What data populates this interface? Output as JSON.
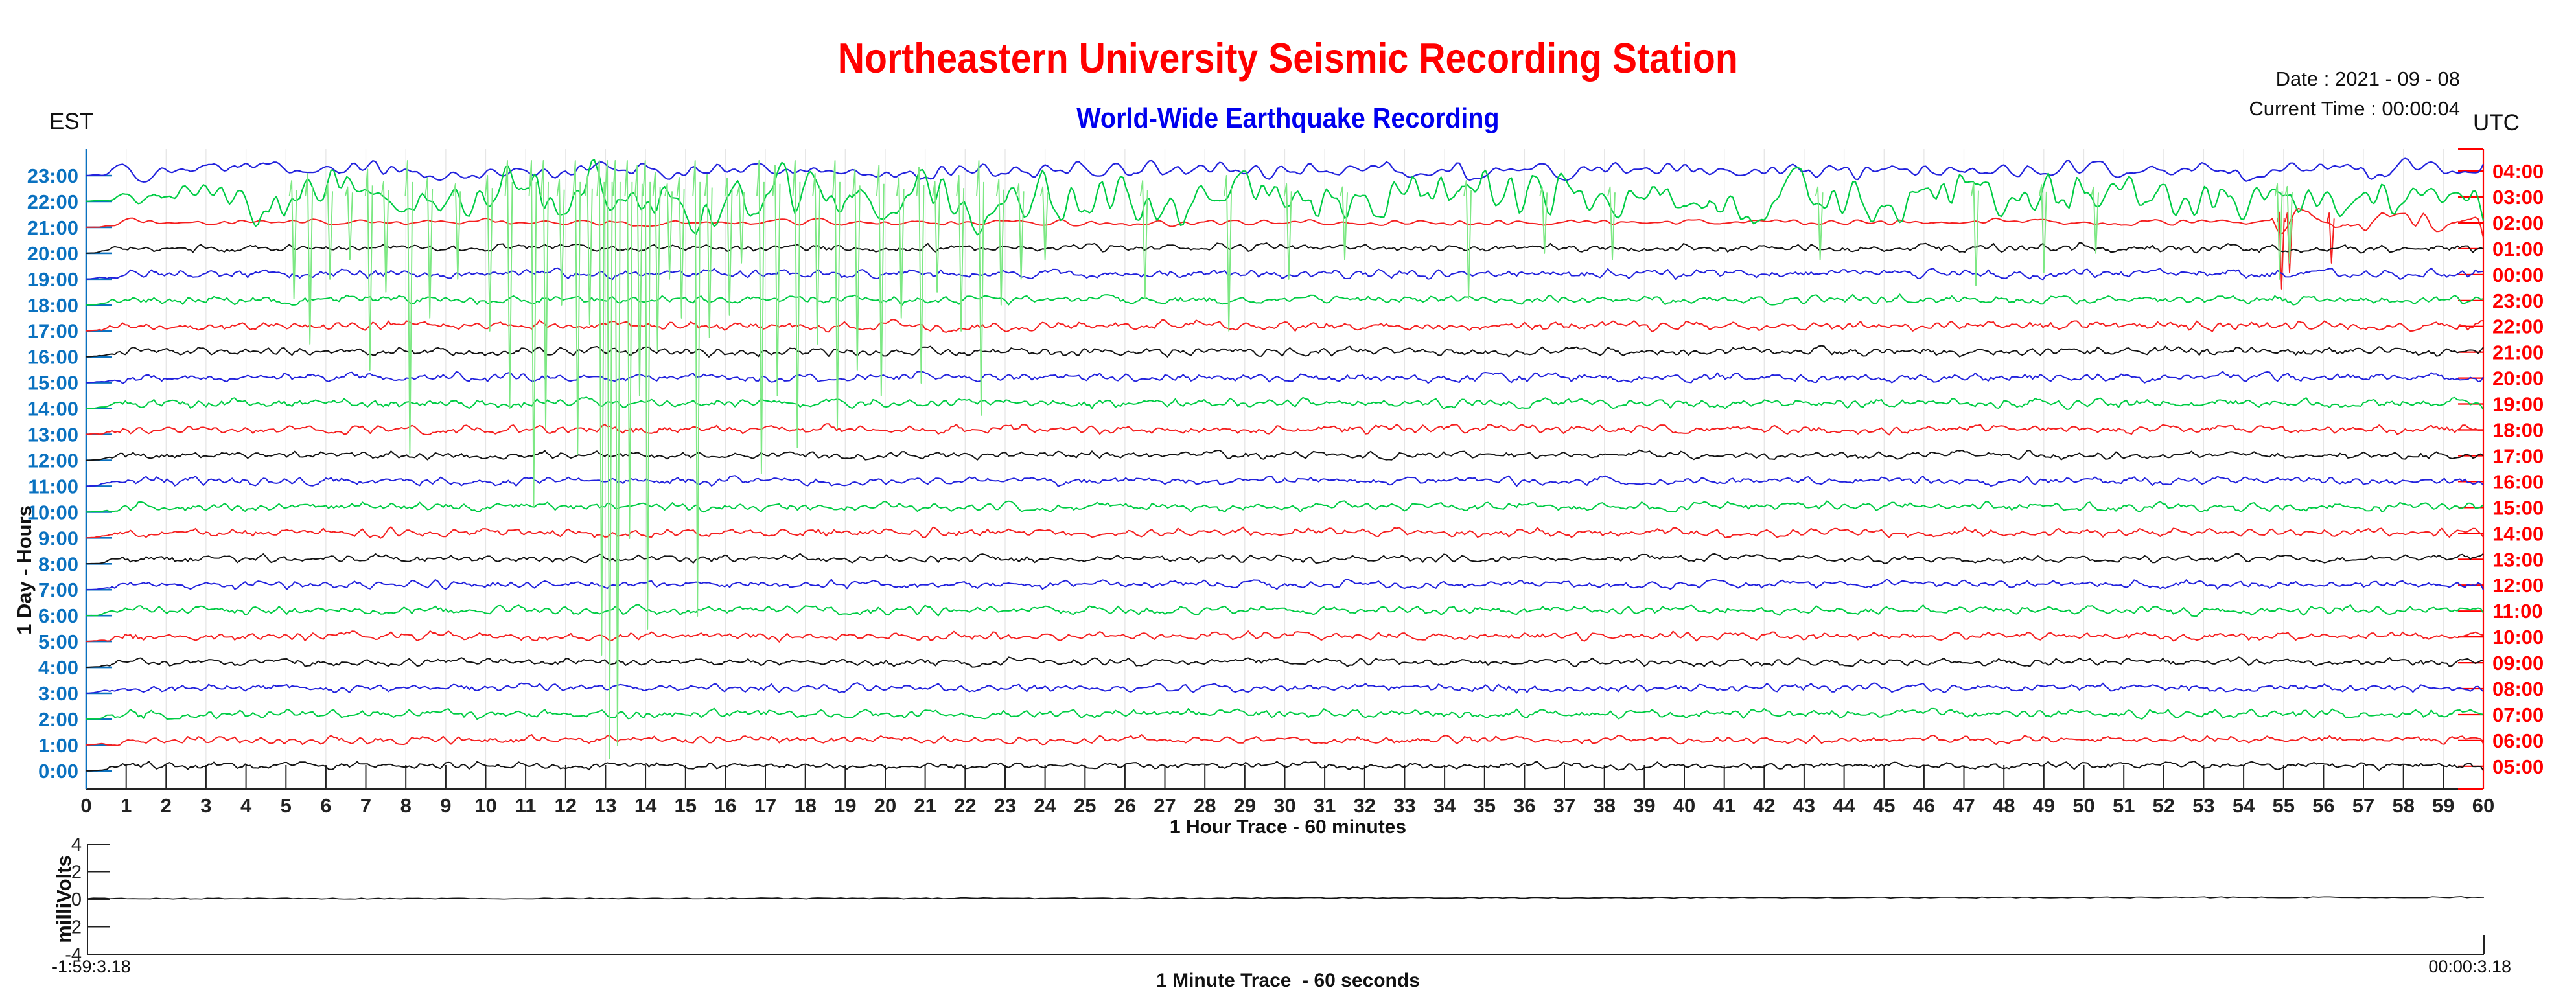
{
  "header": {
    "title": "Northeastern University Seismic Recording Station",
    "subtitle": "World-Wide Earthquake Recording",
    "date_label": "Date : 2021 - 09 - 08",
    "current_time_label": "Current Time : 00:00:04",
    "left_timezone": "EST",
    "right_timezone": "UTC"
  },
  "colors": {
    "title": "#ff0000",
    "subtitle": "#0000ee",
    "est_axis": "#0b72c0",
    "utc_axis": "#ff0000",
    "grid": "#e6e6e6",
    "axis_black": "#222222",
    "trace_black": "#141414",
    "trace_red": "#f52020",
    "trace_green": "#00cc44",
    "trace_green_event": "#7de884",
    "trace_blue": "#2222dd"
  },
  "chart_data": {
    "type": "line",
    "subtype": "helicorder",
    "title": "Northeastern University Seismic Recording Station",
    "subtitle": "World-Wide Earthquake Recording",
    "x_axis": {
      "label": "1 Hour Trace - 60 minutes",
      "range": [
        0,
        60
      ],
      "ticks": [
        0,
        1,
        2,
        3,
        4,
        5,
        6,
        7,
        8,
        9,
        10,
        11,
        12,
        13,
        14,
        15,
        16,
        17,
        18,
        19,
        20,
        21,
        22,
        23,
        24,
        25,
        26,
        27,
        28,
        29,
        30,
        31,
        32,
        33,
        34,
        35,
        36,
        37,
        38,
        39,
        40,
        41,
        42,
        43,
        44,
        45,
        46,
        47,
        48,
        49,
        50,
        51,
        52,
        53,
        54,
        55,
        56,
        57,
        58,
        59,
        60
      ],
      "grid": true
    },
    "left_axis": {
      "label": "1 Day - Hours",
      "timezone": "EST"
    },
    "right_axis": {
      "timezone": "UTC"
    },
    "rows": [
      {
        "est": "23:00",
        "utc": "04:00",
        "color": "blue",
        "amp": [
          [
            0,
            60,
            13
          ]
        ],
        "spikes": []
      },
      {
        "est": "22:00",
        "utc": "03:00",
        "color": "green",
        "amp": [
          [
            0,
            1.5,
            14
          ],
          [
            1.5,
            4,
            22
          ],
          [
            4,
            11,
            30
          ],
          [
            11,
            16,
            44
          ],
          [
            16,
            26,
            40
          ],
          [
            26,
            40,
            36
          ],
          [
            40,
            47,
            40
          ],
          [
            47,
            54,
            34
          ],
          [
            54,
            58,
            34
          ],
          [
            58,
            60,
            25
          ]
        ],
        "spikes": [
          [
            5.2,
            150
          ],
          [
            5.6,
            220
          ],
          [
            6.1,
            120
          ],
          [
            6.6,
            90
          ],
          [
            7.1,
            260
          ],
          [
            7.5,
            140
          ],
          [
            8.1,
            390
          ],
          [
            8.6,
            180
          ],
          [
            9.3,
            120
          ],
          [
            10.1,
            200
          ],
          [
            10.6,
            320
          ],
          [
            11.2,
            470
          ],
          [
            11.5,
            350
          ],
          [
            11.9,
            160
          ],
          [
            12.3,
            390
          ],
          [
            12.6,
            190
          ],
          [
            12.9,
            700
          ],
          [
            13.1,
            860
          ],
          [
            13.3,
            840
          ],
          [
            13.6,
            520
          ],
          [
            13.85,
            300
          ],
          [
            14.05,
            660
          ],
          [
            14.3,
            230
          ],
          [
            14.6,
            120
          ],
          [
            14.9,
            180
          ],
          [
            15.3,
            640
          ],
          [
            15.6,
            210
          ],
          [
            16.1,
            175
          ],
          [
            16.4,
            95
          ],
          [
            16.9,
            420
          ],
          [
            17.3,
            300
          ],
          [
            17.8,
            380
          ],
          [
            18.3,
            220
          ],
          [
            18.8,
            350
          ],
          [
            19.3,
            260
          ],
          [
            19.9,
            300
          ],
          [
            20.4,
            180
          ],
          [
            20.9,
            280
          ],
          [
            21.3,
            140
          ],
          [
            21.9,
            200
          ],
          [
            22.4,
            330
          ],
          [
            22.9,
            160
          ],
          [
            23.4,
            120
          ],
          [
            24,
            90
          ],
          [
            26.5,
            150
          ],
          [
            28.6,
            200
          ],
          [
            30.1,
            120
          ],
          [
            31.5,
            90
          ],
          [
            34.6,
            150
          ],
          [
            36.5,
            80
          ],
          [
            38.2,
            90
          ],
          [
            43.4,
            90
          ],
          [
            47.3,
            130
          ],
          [
            49,
            110
          ],
          [
            50.3,
            80
          ],
          [
            54.9,
            120
          ],
          [
            55.15,
            95
          ]
        ]
      },
      {
        "est": "21:00",
        "utc": "02:00",
        "color": "red",
        "amp": [
          [
            0,
            1.2,
            6
          ],
          [
            1.2,
            54.7,
            4.5
          ],
          [
            54.7,
            60,
            18
          ]
        ],
        "spikes": [
          [
            54.95,
            95
          ],
          [
            55.15,
            70
          ],
          [
            56.2,
            55
          ]
        ]
      },
      {
        "est": "20:00",
        "utc": "01:00",
        "color": "black",
        "amp": [
          [
            0,
            60,
            5
          ]
        ],
        "spikes": []
      },
      {
        "est": "19:00",
        "utc": "00:00",
        "color": "blue",
        "amp": [
          [
            0,
            60,
            5.5
          ]
        ],
        "spikes": []
      },
      {
        "est": "18:00",
        "utc": "23:00",
        "color": "green",
        "amp": [
          [
            0,
            60,
            5.5
          ]
        ],
        "spikes": []
      },
      {
        "est": "17:00",
        "utc": "22:00",
        "color": "red",
        "amp": [
          [
            0,
            60,
            6
          ]
        ],
        "spikes": []
      },
      {
        "est": "16:00",
        "utc": "21:00",
        "color": "black",
        "amp": [
          [
            0,
            60,
            5.5
          ]
        ],
        "spikes": []
      },
      {
        "est": "15:00",
        "utc": "20:00",
        "color": "blue",
        "amp": [
          [
            0,
            60,
            5.5
          ]
        ],
        "spikes": []
      },
      {
        "est": "14:00",
        "utc": "19:00",
        "color": "green",
        "amp": [
          [
            0,
            60,
            6
          ]
        ],
        "spikes": []
      },
      {
        "est": "13:00",
        "utc": "18:00",
        "color": "red",
        "amp": [
          [
            0,
            60,
            5.5
          ]
        ],
        "spikes": []
      },
      {
        "est": "12:00",
        "utc": "17:00",
        "color": "black",
        "amp": [
          [
            0,
            60,
            5
          ]
        ],
        "spikes": []
      },
      {
        "est": "11:00",
        "utc": "16:00",
        "color": "blue",
        "amp": [
          [
            0,
            60,
            5
          ]
        ],
        "spikes": []
      },
      {
        "est": "10:00",
        "utc": "15:00",
        "color": "green",
        "amp": [
          [
            0,
            60,
            5.5
          ]
        ],
        "spikes": []
      },
      {
        "est": "9:00",
        "utc": "14:00",
        "color": "red",
        "amp": [
          [
            0,
            1,
            7
          ],
          [
            1,
            60,
            5.5
          ]
        ],
        "spikes": []
      },
      {
        "est": "8:00",
        "utc": "13:00",
        "color": "black",
        "amp": [
          [
            0,
            60,
            5
          ]
        ],
        "spikes": []
      },
      {
        "est": "7:00",
        "utc": "12:00",
        "color": "blue",
        "amp": [
          [
            0,
            60,
            5
          ]
        ],
        "spikes": []
      },
      {
        "est": "6:00",
        "utc": "11:00",
        "color": "green",
        "amp": [
          [
            0,
            1.5,
            7
          ],
          [
            1.5,
            60,
            5.5
          ]
        ],
        "spikes": []
      },
      {
        "est": "5:00",
        "utc": "10:00",
        "color": "red",
        "amp": [
          [
            0,
            1,
            7
          ],
          [
            1,
            60,
            5.5
          ]
        ],
        "spikes": []
      },
      {
        "est": "4:00",
        "utc": "09:00",
        "color": "black",
        "amp": [
          [
            0,
            60,
            5
          ]
        ],
        "spikes": []
      },
      {
        "est": "3:00",
        "utc": "08:00",
        "color": "blue",
        "amp": [
          [
            0,
            1,
            6
          ],
          [
            1,
            60,
            5
          ]
        ],
        "spikes": []
      },
      {
        "est": "2:00",
        "utc": "07:00",
        "color": "green",
        "amp": [
          [
            0,
            1.5,
            7
          ],
          [
            1.5,
            60,
            5.5
          ]
        ],
        "spikes": []
      },
      {
        "est": "1:00",
        "utc": "06:00",
        "color": "red",
        "amp": [
          [
            0,
            1,
            6
          ],
          [
            1,
            60,
            5
          ]
        ],
        "spikes": []
      },
      {
        "est": "0:00",
        "utc": "05:00",
        "color": "black",
        "amp": [
          [
            0,
            0.7,
            6
          ],
          [
            0.7,
            60,
            4.5
          ]
        ],
        "spikes": []
      }
    ],
    "minute_trace": {
      "ylabel": "milliVolts",
      "xlabel": "1 Minute Trace  - 60 seconds",
      "ylim": [
        -4,
        4
      ],
      "yticks": [
        4,
        2,
        0,
        -2,
        -4
      ],
      "start_label": "-1:59:3.18",
      "end_label": "00:00:3.18",
      "values_mV": [
        [
          0,
          0.05
        ],
        [
          5,
          0.05
        ],
        [
          10,
          0.05
        ],
        [
          15,
          0.06
        ],
        [
          20,
          0.06
        ],
        [
          25,
          0.07
        ],
        [
          28,
          0.07
        ],
        [
          30,
          0.1
        ],
        [
          35,
          0.1
        ],
        [
          40,
          0.11
        ],
        [
          45,
          0.12
        ],
        [
          50,
          0.13
        ],
        [
          55,
          0.14
        ],
        [
          60,
          0.15
        ]
      ]
    }
  }
}
